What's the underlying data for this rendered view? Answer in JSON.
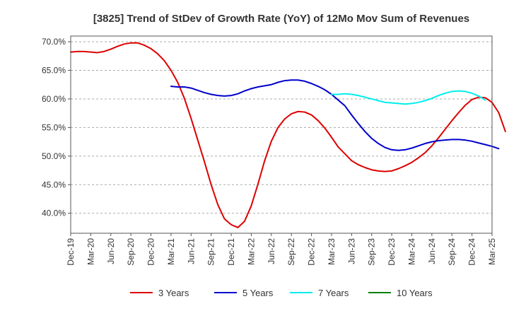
{
  "chart_data": {
    "type": "line",
    "title": "[3825]  Trend of StDev of Growth Rate (YoY) of 12Mo Mov Sum of Revenues",
    "xlabel": "",
    "ylabel": "",
    "ylim": [
      36.5,
      71.0
    ],
    "y_ticks": [
      40,
      45,
      50,
      55,
      60,
      65,
      70
    ],
    "y_tick_labels": [
      "40.0%",
      "45.0%",
      "50.0%",
      "55.0%",
      "60.0%",
      "65.0%",
      "70.0%"
    ],
    "x_tick_labels": [
      "Dec-19",
      "Mar-20",
      "Jun-20",
      "Sep-20",
      "Dec-20",
      "Mar-21",
      "Jun-21",
      "Sep-21",
      "Dec-21",
      "Mar-22",
      "Jun-22",
      "Sep-22",
      "Dec-22",
      "Mar-23",
      "Jun-23",
      "Sep-23",
      "Dec-23",
      "Mar-24",
      "Jun-24",
      "Sep-24",
      "Dec-24",
      "Mar-25"
    ],
    "x_months_per_tick": 3,
    "grid": "horizontal-dashed",
    "legend_position": "bottom",
    "series": [
      {
        "name": "3 Years",
        "color": "#dd0000",
        "start_index": 0,
        "values": [
          68.2,
          68.3,
          68.3,
          68.2,
          68.1,
          68.3,
          68.7,
          69.2,
          69.6,
          69.8,
          69.8,
          69.4,
          68.8,
          67.9,
          66.7,
          65.0,
          62.9,
          60.1,
          56.6,
          52.8,
          49.0,
          45.0,
          41.5,
          39.0,
          38.0,
          37.5,
          38.6,
          41.3,
          45.1,
          49.2,
          52.6,
          55.0,
          56.5,
          57.4,
          57.8,
          57.7,
          57.2,
          56.2,
          54.9,
          53.3,
          51.6,
          50.4,
          49.2,
          48.5,
          48.0,
          47.6,
          47.4,
          47.3,
          47.4,
          47.8,
          48.3,
          48.9,
          49.7,
          50.6,
          51.8,
          53.2,
          54.7,
          56.2,
          57.6,
          58.9,
          59.9,
          60.3,
          60.2,
          59.4,
          57.6,
          54.3
        ]
      },
      {
        "name": "5 Years",
        "color": "#0000cc",
        "start_index": 15,
        "values": [
          62.2,
          62.1,
          62.1,
          61.9,
          61.5,
          61.1,
          60.8,
          60.6,
          60.5,
          60.6,
          60.9,
          61.4,
          61.8,
          62.1,
          62.3,
          62.5,
          62.9,
          63.2,
          63.3,
          63.3,
          63.1,
          62.7,
          62.2,
          61.6,
          60.8,
          59.8,
          58.8,
          57.2,
          55.7,
          54.3,
          53.1,
          52.2,
          51.5,
          51.1,
          51.0,
          51.1,
          51.4,
          51.8,
          52.2,
          52.5,
          52.7,
          52.8,
          52.9,
          52.9,
          52.8,
          52.6,
          52.3,
          52.0,
          51.7,
          51.3
        ]
      },
      {
        "name": "7 Years",
        "color": "#00eeee",
        "start_index": 39,
        "values": [
          60.8,
          60.8,
          60.9,
          60.8,
          60.6,
          60.3,
          60.0,
          59.7,
          59.4,
          59.3,
          59.2,
          59.1,
          59.2,
          59.4,
          59.7,
          60.1,
          60.6,
          61.0,
          61.3,
          61.4,
          61.3,
          61.0,
          60.5,
          59.8
        ]
      },
      {
        "name": "10 Years",
        "color": "#008000",
        "start_index": 0,
        "values": []
      }
    ]
  }
}
